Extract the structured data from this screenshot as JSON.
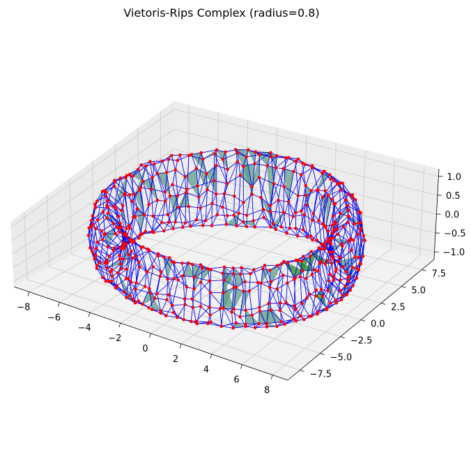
{
  "chart_data": {
    "type": "3d-network",
    "title": "Vietoris-Rips Complex (radius=0.8)",
    "xlabel": "",
    "ylabel": "",
    "zlabel": "",
    "xlim": [
      -9,
      9
    ],
    "ylim": [
      -9,
      9
    ],
    "zlim": [
      -1.2,
      1.2
    ],
    "x_ticks": [
      -8,
      -6,
      -4,
      -2,
      0,
      2,
      4,
      6,
      8
    ],
    "y_ticks": [
      -7.5,
      -5.0,
      -2.5,
      0.0,
      2.5,
      5.0,
      7.5
    ],
    "z_ticks": [
      -1.0,
      -0.5,
      0.0,
      0.5,
      1.0
    ],
    "x_tick_labels": [
      "−8",
      "−6",
      "−4",
      "−2",
      "0",
      "2",
      "4",
      "6",
      "8"
    ],
    "y_tick_labels": [
      "−7.5",
      "−5.0",
      "−2.5",
      "0.0",
      "2.5",
      "5.0",
      "7.5"
    ],
    "z_tick_labels": [
      "−1.0",
      "−0.5",
      "0.0",
      "0.5",
      "1.0"
    ],
    "shape": "torus",
    "torus_major_radius": 7,
    "torus_minor_radius": 1,
    "grid": true,
    "colors": {
      "vertices": "#ff0000",
      "edges": "#0000ee",
      "triangles": "#5f9f8a",
      "highlight_triangles": "#228b22",
      "pane": "#f2f2f2",
      "grid": "#c8c8c8"
    }
  }
}
